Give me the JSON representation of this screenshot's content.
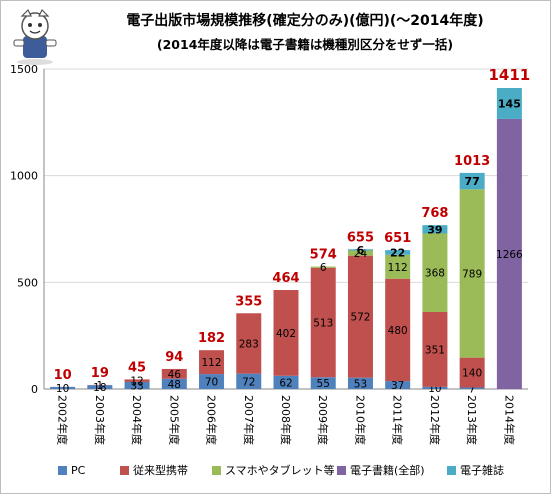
{
  "title_line1": "電子出版市場規模推移(確定分のみ)(億円)(〜2014年度)",
  "title_line2": "(2014年度以降は電子書籍は機種別区分をせず一括)",
  "chart_data": {
    "type": "bar",
    "stacked": true,
    "categories": [
      "2002年度",
      "2003年度",
      "2004年度",
      "2005年度",
      "2006年度",
      "2007年度",
      "2008年度",
      "2009年度",
      "2010年度",
      "2011年度",
      "2012年度",
      "2013年度",
      "2014年度"
    ],
    "ylim": [
      0,
      1500
    ],
    "yticks": [
      0,
      500,
      1000,
      1500
    ],
    "grid": true,
    "legend_position": "bottom",
    "series": [
      {
        "name": "PC",
        "color": "#4f81bd",
        "values": [
          10,
          18,
          33,
          48,
          70,
          72,
          62,
          55,
          53,
          37,
          10,
          7,
          0
        ],
        "labels": [
          "10",
          "18",
          "33",
          "48",
          "70",
          "72",
          "62",
          "55",
          "53",
          "37",
          "10",
          "7",
          ""
        ]
      },
      {
        "name": "従来型携帯",
        "color": "#c0504d",
        "values": [
          0,
          1,
          12,
          46,
          112,
          283,
          402,
          513,
          572,
          480,
          351,
          140,
          0
        ],
        "labels": [
          "",
          "1",
          "12",
          "46",
          "112",
          "283",
          "402",
          "513",
          "572",
          "480",
          "351",
          "140",
          ""
        ]
      },
      {
        "name": "スマホやタブレット等",
        "color": "#9bbb59",
        "values": [
          0,
          0,
          0,
          0,
          0,
          0,
          0,
          6,
          24,
          112,
          368,
          789,
          0
        ],
        "labels": [
          "",
          "",
          "",
          "",
          "",
          "",
          "",
          "6",
          "24",
          "112",
          "368",
          "789",
          ""
        ]
      },
      {
        "name": "電子書籍(全部)",
        "color": "#8064a2",
        "values": [
          0,
          0,
          0,
          0,
          0,
          0,
          0,
          0,
          0,
          0,
          0,
          0,
          1266
        ],
        "labels": [
          "",
          "",
          "",
          "",
          "",
          "",
          "",
          "",
          "",
          "",
          "",
          "",
          "1266"
        ]
      },
      {
        "name": "電子雑誌",
        "color": "#4bacc6",
        "values": [
          0,
          0,
          0,
          0,
          0,
          0,
          0,
          0,
          6,
          22,
          39,
          77,
          145
        ],
        "labels": [
          "",
          "",
          "",
          "",
          "",
          "",
          "",
          "",
          "6",
          "22",
          "39",
          "77",
          "145"
        ]
      }
    ],
    "totals": [
      10,
      19,
      45,
      94,
      182,
      355,
      464,
      574,
      655,
      651,
      768,
      1013,
      1411
    ],
    "total_color": "#c00000"
  }
}
